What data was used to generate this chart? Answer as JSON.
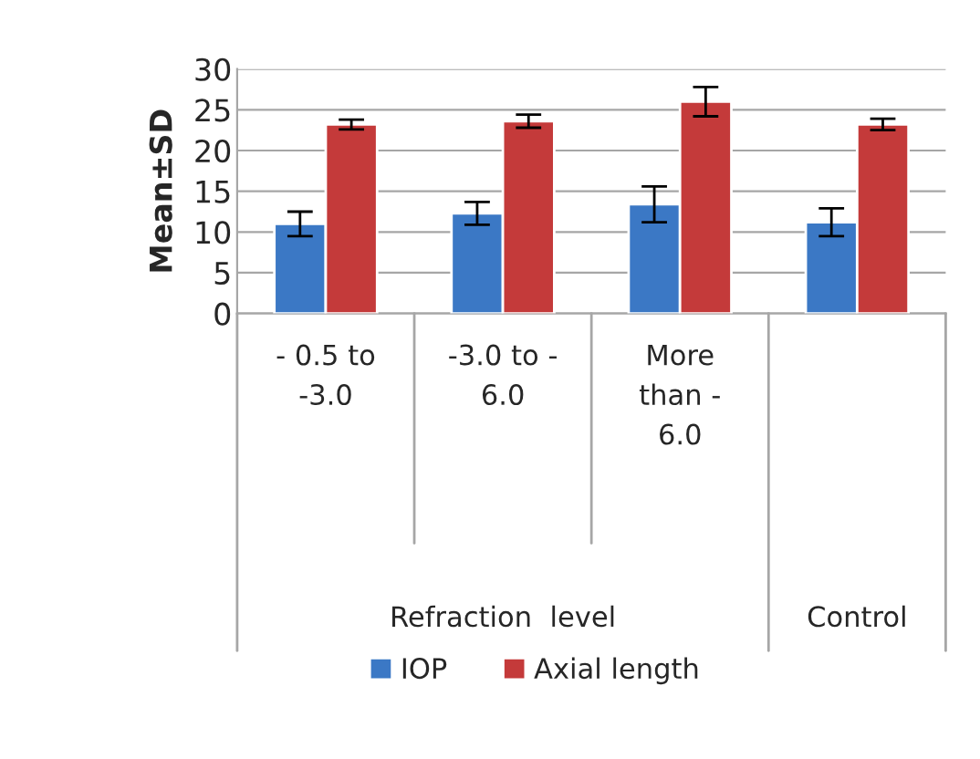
{
  "chart_data": {
    "type": "bar",
    "ylabel": "Mean±SD",
    "categories": [
      "- 0.5 to\n-3.0",
      "-3.0 to -\n6.0",
      "More\nthan -\n6.0",
      null
    ],
    "series": [
      {
        "name": "IOP",
        "color": "#3b78c5",
        "values": [
          11.0,
          12.3,
          13.4,
          11.2
        ],
        "errors": [
          1.5,
          1.4,
          2.2,
          1.7
        ]
      },
      {
        "name": "Axial length",
        "color": "#c43a3a",
        "values": [
          23.2,
          23.6,
          26.0,
          23.2
        ],
        "errors": [
          0.6,
          0.8,
          1.8,
          0.7
        ]
      }
    ],
    "annotations": [
      "Refraction  level",
      "Control"
    ],
    "ylim": [
      0,
      30
    ],
    "yticks": [
      0,
      5,
      10,
      15,
      20,
      25,
      30
    ],
    "grid": "y",
    "legend": "bottom"
  }
}
